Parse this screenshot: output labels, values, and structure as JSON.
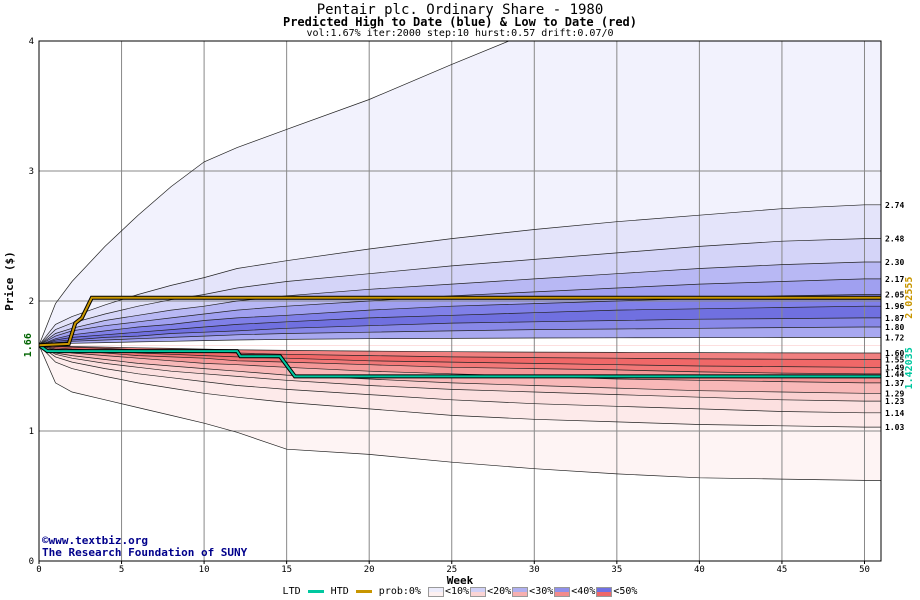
{
  "chart_data": {
    "type": "area",
    "title": "Pentair plc. Ordinary Share - 1980",
    "subtitle": "Predicted High to Date (blue) &  Low to Date (red)",
    "params": "vol:1.67% iter:2000 step:10 hurst:0.57 drift:0.07/0",
    "xlabel": "Week",
    "ylabel": "Price ($)",
    "xlim": [
      0,
      51
    ],
    "ylim": [
      0,
      4
    ],
    "xticks": [
      0,
      5,
      10,
      15,
      20,
      25,
      30,
      35,
      40,
      45,
      50
    ],
    "yticks": [
      0,
      1,
      2,
      3,
      4
    ],
    "grid": true,
    "start_price": 1.66,
    "start_label": "1.66",
    "weeks": [
      0,
      1,
      2,
      4,
      6,
      8,
      10,
      12,
      15,
      20,
      25,
      30,
      35,
      40,
      45,
      50,
      51
    ],
    "upper_bands": [
      {
        "label": "1.72",
        "end": 1.72,
        "color": "#ffffff",
        "values": [
          1.66,
          1.67,
          1.675,
          1.68,
          1.685,
          1.69,
          1.695,
          1.7,
          1.705,
          1.71,
          1.712,
          1.715,
          1.717,
          1.718,
          1.719,
          1.72,
          1.72
        ]
      },
      {
        "label": "1.80",
        "end": 1.8,
        "color": "#a8a8f0",
        "values": [
          1.66,
          1.68,
          1.69,
          1.7,
          1.71,
          1.72,
          1.73,
          1.74,
          1.75,
          1.76,
          1.77,
          1.78,
          1.785,
          1.79,
          1.795,
          1.8,
          1.8
        ]
      },
      {
        "label": "1.87",
        "end": 1.87,
        "color": "#8888e8",
        "values": [
          1.66,
          1.69,
          1.7,
          1.72,
          1.73,
          1.75,
          1.76,
          1.77,
          1.79,
          1.81,
          1.83,
          1.84,
          1.85,
          1.86,
          1.865,
          1.87,
          1.87
        ]
      },
      {
        "label": "1.96",
        "end": 1.96,
        "color": "#7070e0",
        "values": [
          1.66,
          1.7,
          1.72,
          1.74,
          1.76,
          1.78,
          1.8,
          1.82,
          1.84,
          1.87,
          1.89,
          1.91,
          1.93,
          1.94,
          1.95,
          1.96,
          1.96
        ]
      },
      {
        "label": "2.05",
        "end": 2.05,
        "color": "#8080e8",
        "values": [
          1.66,
          1.71,
          1.74,
          1.77,
          1.8,
          1.82,
          1.85,
          1.87,
          1.89,
          1.93,
          1.96,
          1.98,
          2.0,
          2.02,
          2.04,
          2.05,
          2.05
        ]
      },
      {
        "label": "2.17",
        "end": 2.17,
        "color": "#a0a0f0",
        "values": [
          1.66,
          1.73,
          1.77,
          1.81,
          1.84,
          1.87,
          1.9,
          1.93,
          1.96,
          2.0,
          2.04,
          2.07,
          2.1,
          2.13,
          2.15,
          2.17,
          2.17
        ]
      },
      {
        "label": "2.30",
        "end": 2.3,
        "color": "#b8b8f4",
        "values": [
          1.66,
          1.75,
          1.79,
          1.85,
          1.89,
          1.93,
          1.96,
          2.0,
          2.04,
          2.09,
          2.13,
          2.17,
          2.21,
          2.25,
          2.28,
          2.3,
          2.3
        ]
      },
      {
        "label": "2.48",
        "end": 2.48,
        "color": "#d4d4f8",
        "values": [
          1.66,
          1.78,
          1.83,
          1.9,
          1.96,
          2.01,
          2.05,
          2.1,
          2.15,
          2.21,
          2.27,
          2.32,
          2.37,
          2.42,
          2.46,
          2.48,
          2.48
        ]
      },
      {
        "label": "2.74",
        "end": 2.74,
        "color": "#e4e4fa",
        "values": [
          1.66,
          1.82,
          1.88,
          1.97,
          2.05,
          2.12,
          2.18,
          2.25,
          2.31,
          2.4,
          2.48,
          2.55,
          2.61,
          2.66,
          2.71,
          2.74,
          2.74
        ]
      },
      {
        "label": "",
        "end": 4.6,
        "color": "#f2f2fd",
        "values": [
          1.66,
          1.98,
          2.15,
          2.42,
          2.66,
          2.88,
          3.07,
          3.18,
          3.32,
          3.55,
          3.82,
          4.08,
          4.25,
          4.4,
          4.52,
          4.6,
          4.62
        ]
      }
    ],
    "lower_bands": [
      {
        "label": "1.60",
        "end": 1.6,
        "color": "#ffffff",
        "values": [
          1.66,
          1.655,
          1.65,
          1.645,
          1.64,
          1.635,
          1.63,
          1.625,
          1.62,
          1.615,
          1.61,
          1.607,
          1.605,
          1.603,
          1.601,
          1.6,
          1.6
        ]
      },
      {
        "label": "1.55",
        "end": 1.55,
        "color": "#f08080",
        "values": [
          1.66,
          1.65,
          1.645,
          1.635,
          1.625,
          1.615,
          1.61,
          1.6,
          1.59,
          1.58,
          1.57,
          1.565,
          1.56,
          1.555,
          1.552,
          1.55,
          1.55
        ]
      },
      {
        "label": "1.49",
        "end": 1.49,
        "color": "#f06868",
        "values": [
          1.66,
          1.64,
          1.63,
          1.62,
          1.6,
          1.59,
          1.58,
          1.57,
          1.56,
          1.54,
          1.53,
          1.52,
          1.51,
          1.5,
          1.495,
          1.49,
          1.49
        ]
      },
      {
        "label": "1.44",
        "end": 1.44,
        "color": "#f27878",
        "values": [
          1.66,
          1.63,
          1.62,
          1.6,
          1.58,
          1.57,
          1.56,
          1.54,
          1.53,
          1.51,
          1.49,
          1.48,
          1.47,
          1.455,
          1.445,
          1.44,
          1.44
        ]
      },
      {
        "label": "1.37",
        "end": 1.37,
        "color": "#f49898",
        "values": [
          1.66,
          1.62,
          1.6,
          1.58,
          1.56,
          1.54,
          1.52,
          1.51,
          1.49,
          1.46,
          1.44,
          1.42,
          1.4,
          1.39,
          1.38,
          1.37,
          1.37
        ]
      },
      {
        "label": "1.29",
        "end": 1.29,
        "color": "#f8b8b8",
        "values": [
          1.66,
          1.6,
          1.58,
          1.55,
          1.52,
          1.5,
          1.48,
          1.46,
          1.43,
          1.4,
          1.37,
          1.35,
          1.33,
          1.31,
          1.3,
          1.29,
          1.29
        ]
      },
      {
        "label": "1.23",
        "end": 1.23,
        "color": "#fad0d0",
        "values": [
          1.66,
          1.59,
          1.56,
          1.52,
          1.49,
          1.46,
          1.44,
          1.42,
          1.39,
          1.35,
          1.32,
          1.3,
          1.28,
          1.26,
          1.24,
          1.23,
          1.23
        ]
      },
      {
        "label": "1.14",
        "end": 1.14,
        "color": "#fce0e0",
        "values": [
          1.66,
          1.57,
          1.53,
          1.48,
          1.44,
          1.41,
          1.38,
          1.35,
          1.32,
          1.28,
          1.24,
          1.21,
          1.19,
          1.17,
          1.15,
          1.14,
          1.14
        ]
      },
      {
        "label": "1.03",
        "end": 1.03,
        "color": "#fdeaea",
        "values": [
          1.66,
          1.53,
          1.48,
          1.42,
          1.37,
          1.33,
          1.29,
          1.26,
          1.22,
          1.17,
          1.12,
          1.09,
          1.07,
          1.05,
          1.04,
          1.03,
          1.03
        ]
      },
      {
        "label": "",
        "end": 0.62,
        "color": "#fef4f4",
        "values": [
          1.66,
          1.37,
          1.3,
          1.24,
          1.18,
          1.12,
          1.06,
          0.99,
          0.86,
          0.82,
          0.76,
          0.71,
          0.67,
          0.64,
          0.63,
          0.62,
          0.62
        ]
      }
    ],
    "htd": {
      "name": "HTD",
      "color": "#c89600",
      "end_label": "2.02555",
      "points": [
        [
          0,
          1.66
        ],
        [
          1.8,
          1.67
        ],
        [
          2.2,
          1.83
        ],
        [
          2.6,
          1.87
        ],
        [
          3.2,
          2.02555
        ],
        [
          51,
          2.02555
        ]
      ]
    },
    "ltd": {
      "name": "LTD",
      "color": "#00c8a0",
      "end_label": "1.42035",
      "points": [
        [
          0,
          1.66
        ],
        [
          0.5,
          1.615
        ],
        [
          12,
          1.615
        ],
        [
          12.2,
          1.575
        ],
        [
          14.6,
          1.575
        ],
        [
          15.5,
          1.42035
        ],
        [
          51,
          1.42035
        ]
      ]
    }
  },
  "legend": {
    "ltd_label": "LTD",
    "htd_label": "HTD",
    "prob_label": "prob:0%",
    "items": [
      {
        "label": "<10%",
        "color": "#fdf0f0"
      },
      {
        "label": "<20%",
        "color": "#fad4d4"
      },
      {
        "label": "<30%",
        "color": "#f6b0b0"
      },
      {
        "label": "<40%",
        "color": "#f28c8c"
      },
      {
        "label": "<50%",
        "color": "#ee6868"
      }
    ],
    "blue_items": [
      {
        "color": "#ececfb"
      },
      {
        "color": "#d0d0f6"
      },
      {
        "color": "#b0b0f0"
      },
      {
        "color": "#9090ea"
      },
      {
        "color": "#7070e2"
      }
    ]
  },
  "watermark": {
    "site": "www.textbiz.org",
    "org": "The Research Foundation of SUNY"
  }
}
